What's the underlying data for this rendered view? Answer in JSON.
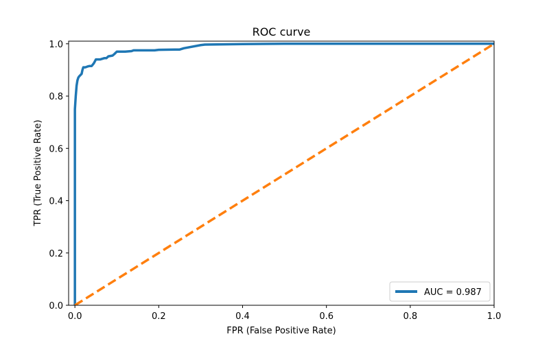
{
  "chart_data": {
    "type": "line",
    "title": "ROC curve",
    "xlabel": "FPR (False Positive Rate)",
    "ylabel": "TPR (True Positive Rate)",
    "xlim": [
      -0.015,
      1.0
    ],
    "ylim": [
      0.0,
      1.01
    ],
    "xticks": [
      0.0,
      0.2,
      0.4,
      0.6,
      0.8,
      1.0
    ],
    "xtick_labels": [
      "0.0",
      "0.2",
      "0.4",
      "0.6",
      "0.8",
      "1.0"
    ],
    "yticks": [
      0.0,
      0.2,
      0.4,
      0.6,
      0.8,
      1.0
    ],
    "ytick_labels": [
      "0.0",
      "0.2",
      "0.4",
      "0.6",
      "0.8",
      "1.0"
    ],
    "grid": false,
    "legend_position": "lower-right",
    "series": [
      {
        "name": "AUC = 0.987",
        "color": "#1f77b4",
        "style": "solid",
        "x": [
          0.0,
          0.0,
          0.002,
          0.003,
          0.004,
          0.005,
          0.006,
          0.008,
          0.01,
          0.013,
          0.016,
          0.018,
          0.02,
          0.025,
          0.03,
          0.035,
          0.04,
          0.045,
          0.05,
          0.06,
          0.07,
          0.075,
          0.08,
          0.09,
          0.095,
          0.1,
          0.12,
          0.135,
          0.14,
          0.19,
          0.2,
          0.25,
          0.26,
          0.3,
          0.31,
          0.4,
          0.5,
          0.6,
          0.8,
          1.0
        ],
        "y": [
          0.0,
          0.75,
          0.8,
          0.82,
          0.84,
          0.85,
          0.86,
          0.87,
          0.875,
          0.88,
          0.885,
          0.9,
          0.91,
          0.91,
          0.913,
          0.915,
          0.915,
          0.925,
          0.94,
          0.94,
          0.945,
          0.945,
          0.952,
          0.955,
          0.962,
          0.97,
          0.97,
          0.972,
          0.975,
          0.975,
          0.977,
          0.978,
          0.983,
          0.995,
          0.997,
          0.999,
          1.0,
          1.0,
          1.0,
          1.0
        ]
      },
      {
        "name": "",
        "color": "#ff7f0e",
        "style": "dashed",
        "x": [
          0.0,
          1.0
        ],
        "y": [
          0.0,
          1.0
        ]
      }
    ],
    "legend": [
      {
        "label": "AUC = 0.987",
        "color": "#1f77b4"
      }
    ]
  }
}
